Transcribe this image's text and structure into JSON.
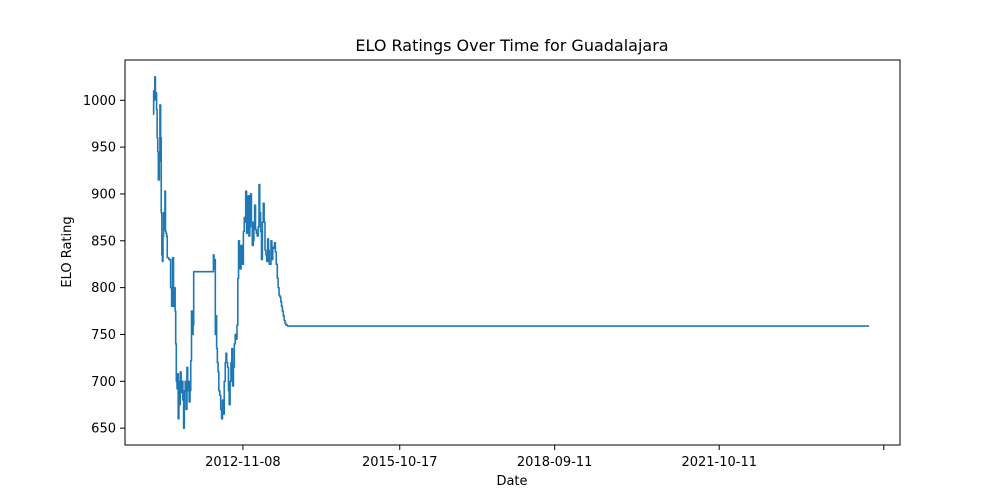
{
  "chart_data": {
    "type": "line",
    "title": "ELO Ratings Over Time for Guadalajara",
    "xlabel": "Date",
    "ylabel": "ELO Rating",
    "x_ticks": [
      "2012-11-08",
      "2015-10-17",
      "2018-09-11",
      "2021-10-11",
      ""
    ],
    "y_ticks": [
      650,
      700,
      750,
      800,
      850,
      900,
      950,
      1000
    ],
    "xlim": [
      "2010-08-24",
      "2025-03-01"
    ],
    "ylim": [
      632,
      1043
    ],
    "grid": false,
    "color": "#1f77b4",
    "series": [
      {
        "x": [
          "2011-03-04",
          "2011-03-08",
          "2011-03-12",
          "2011-03-16",
          "2011-03-20",
          "2011-03-24",
          "2011-03-28",
          "2011-04-01",
          "2011-04-05",
          "2011-04-09",
          "2011-04-16",
          "2011-04-20",
          "2011-04-25",
          "2011-04-29",
          "2011-05-03",
          "2011-05-07",
          "2011-05-11",
          "2011-05-15",
          "2011-05-19",
          "2011-05-24",
          "2011-05-28",
          "2011-06-01",
          "2011-06-05",
          "2011-06-09",
          "2011-06-20",
          "2011-07-02",
          "2011-07-09",
          "2011-07-15",
          "2011-07-22",
          "2011-07-29",
          "2011-08-02",
          "2011-08-06",
          "2011-08-10",
          "2011-08-15",
          "2011-08-19",
          "2011-08-23",
          "2011-08-28",
          "2011-09-02",
          "2011-09-06",
          "2011-09-12",
          "2011-09-18",
          "2011-09-24",
          "2011-09-29",
          "2011-10-04",
          "2011-10-10",
          "2011-10-16",
          "2011-10-22",
          "2011-10-27",
          "2011-11-01",
          "2011-11-06",
          "2011-11-12",
          "2011-11-17",
          "2011-11-22",
          "2011-11-27",
          "2011-12-03",
          "2011-12-07",
          "2011-12-12",
          "2011-12-16",
          "2011-12-21",
          "2011-12-26",
          "2011-12-31",
          "2012-01-04",
          "2012-01-09",
          "2012-01-13",
          "2012-01-18",
          "2012-01-23",
          "2012-01-28",
          "2012-02-03",
          "2012-02-08",
          "2012-02-13",
          "2012-02-18",
          "2012-04-03",
          "2012-04-20",
          "2012-04-24",
          "2012-04-28",
          "2012-05-03",
          "2012-05-07",
          "2012-05-12",
          "2012-05-17",
          "2012-05-22",
          "2012-05-27",
          "2012-06-03",
          "2012-06-09",
          "2012-06-15",
          "2012-06-21",
          "2012-06-27",
          "2012-07-03",
          "2012-07-10",
          "2012-07-15",
          "2012-07-20",
          "2012-07-26",
          "2012-08-01",
          "2012-08-06",
          "2012-08-12",
          "2012-08-18",
          "2012-08-24",
          "2012-08-29",
          "2012-09-04",
          "2012-09-10",
          "2012-09-16",
          "2012-09-22",
          "2012-09-28",
          "2012-10-04",
          "2012-10-09",
          "2012-10-15",
          "2012-10-20",
          "2012-10-26",
          "2012-11-01",
          "2012-11-06",
          "2012-11-11",
          "2012-11-17",
          "2012-11-22",
          "2012-11-27",
          "2012-12-03",
          "2012-12-08",
          "2012-12-14",
          "2012-12-19",
          "2012-12-25",
          "2012-12-30",
          "2013-01-05",
          "2013-01-11",
          "2013-01-17",
          "2013-01-22",
          "2013-01-27",
          "2013-02-02",
          "2013-02-08",
          "2013-02-14",
          "2013-02-20",
          "2013-02-26",
          "2013-03-03",
          "2013-03-09",
          "2013-03-15",
          "2013-03-21",
          "2013-03-27",
          "2013-04-02",
          "2013-04-08",
          "2013-04-14",
          "2013-04-20",
          "2013-04-26",
          "2013-05-02",
          "2013-05-07",
          "2013-05-13",
          "2013-05-19",
          "2013-05-25",
          "2013-05-31",
          "2013-06-06",
          "2013-06-12",
          "2013-06-18",
          "2013-06-24",
          "2013-07-01",
          "2013-07-07",
          "2013-07-13",
          "2013-07-19",
          "2013-07-25",
          "2013-07-30",
          "2013-08-05",
          "2013-08-11",
          "2013-08-17",
          "2013-08-23",
          "2013-08-29",
          "2013-09-04",
          "2013-09-09",
          "2013-09-15",
          "2013-09-21",
          "2013-09-27",
          "2013-10-03",
          "2013-10-09",
          "2013-10-15",
          "2013-10-21",
          "2013-10-27",
          "2013-11-02",
          "2013-11-08",
          "2024-08-01"
        ],
        "values": [
          985,
          1010,
          1000,
          1025,
          1002,
          1008,
          990,
          960,
          945,
          915,
          935,
          995,
          960,
          880,
          835,
          828,
          855,
          880,
          862,
          903,
          860,
          858,
          855,
          832,
          830,
          800,
          780,
          832,
          780,
          800,
          775,
          740,
          700,
          692,
          708,
          660,
          700,
          675,
          710,
          688,
          700,
          680,
          650,
          690,
          700,
          670,
          715,
          690,
          700,
          678,
          690,
          722,
          775,
          750,
          760,
          817,
          817,
          817,
          817,
          817,
          817,
          817,
          817,
          817,
          817,
          817,
          817,
          817,
          817,
          817,
          817,
          817,
          835,
          820,
          830,
          750,
          770,
          735,
          720,
          710,
          690,
          685,
          670,
          660,
          680,
          665,
          700,
          720,
          730,
          720,
          715,
          690,
          675,
          700,
          720,
          735,
          695,
          715,
          740,
          750,
          745,
          760,
          810,
          850,
          830,
          820,
          845,
          838,
          825,
          860,
          875,
          870,
          903,
          858,
          888,
          898,
          855,
          865,
          900,
          870,
          845,
          850,
          870,
          888,
          862,
          858,
          855,
          865,
          910,
          880,
          860,
          830,
          870,
          890,
          870,
          840,
          835,
          828,
          852,
          840,
          825,
          825,
          850,
          830,
          843,
          842,
          848,
          838,
          825,
          810,
          800,
          792,
          790,
          785,
          780,
          775,
          770,
          765,
          762,
          760,
          760,
          759,
          759,
          759,
          759,
          759,
          759,
          759,
          759,
          759,
          759,
          759,
          759
        ]
      }
    ]
  }
}
